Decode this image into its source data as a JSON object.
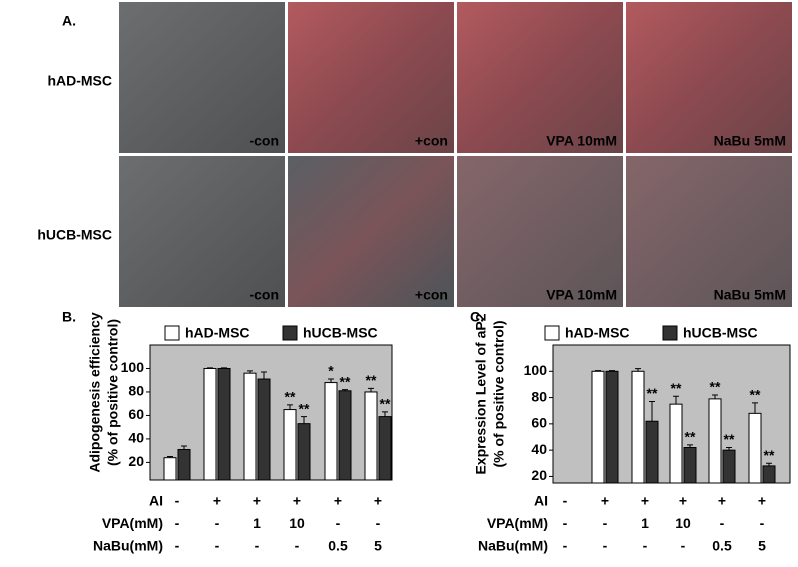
{
  "panel_a": {
    "label": "A.",
    "rows": [
      {
        "label": "hAD-MSC",
        "images": [
          "-con",
          "+con",
          "VPA 10mM",
          "NaBu 5mM"
        ]
      },
      {
        "label": "hUCB-MSC",
        "images": [
          "-con",
          "+con",
          "VPA 10mM",
          "NaBu 5mM"
        ]
      }
    ]
  },
  "chart_data": [
    {
      "type": "bar",
      "panel_label": "B.",
      "y_label": [
        "Adipogenesis efficiency",
        "(% of positive control)"
      ],
      "ylim": [
        5,
        120
      ],
      "yticks": [
        20,
        40,
        60,
        80,
        100
      ],
      "treatment_rows": [
        {
          "label": "AI",
          "values": [
            "-",
            "+",
            "+",
            "+",
            "+",
            "+"
          ]
        },
        {
          "label": "VPA(mM)",
          "values": [
            "-",
            "-",
            "1",
            "10",
            "-",
            "-"
          ]
        },
        {
          "label": "NaBu(mM)",
          "values": [
            "-",
            "-",
            "-",
            "-",
            "0.5",
            "5"
          ]
        }
      ],
      "series": [
        {
          "name": "hAD-MSC",
          "color": "#ffffff",
          "values": [
            24,
            100,
            96,
            65,
            88,
            80
          ],
          "errors": [
            1,
            0.5,
            2,
            4,
            3,
            3
          ],
          "annotations": [
            null,
            null,
            null,
            "**",
            "*",
            "**"
          ]
        },
        {
          "name": "hUCB-MSC",
          "color": "#333333",
          "values": [
            31,
            100,
            91,
            53,
            81,
            59
          ],
          "errors": [
            3,
            0.5,
            6,
            6,
            1,
            4
          ],
          "annotations": [
            null,
            null,
            null,
            "**",
            "**",
            "**"
          ]
        }
      ]
    },
    {
      "type": "bar",
      "panel_label": "C.",
      "y_label": [
        "Expression Level of aP2",
        "(% of positive control)"
      ],
      "ylim": [
        15,
        120
      ],
      "yticks": [
        20,
        40,
        60,
        80,
        100
      ],
      "treatment_rows": [
        {
          "label": "AI",
          "values": [
            "-",
            "+",
            "+",
            "+",
            "+",
            "+"
          ]
        },
        {
          "label": "VPA(mM)",
          "values": [
            "-",
            "-",
            "1",
            "10",
            "-",
            "-"
          ]
        },
        {
          "label": "NaBu(mM)",
          "values": [
            "-",
            "-",
            "-",
            "-",
            "0.5",
            "5"
          ]
        }
      ],
      "series": [
        {
          "name": "hAD-MSC",
          "color": "#ffffff",
          "values": [
            null,
            100,
            100,
            75,
            79,
            68
          ],
          "errors": [
            null,
            0.5,
            2,
            6,
            3,
            8
          ],
          "annotations": [
            null,
            null,
            null,
            "**",
            "**",
            "**"
          ]
        },
        {
          "name": "hUCB-MSC",
          "color": "#333333",
          "values": [
            null,
            100,
            62,
            42,
            40,
            28
          ],
          "errors": [
            null,
            0.5,
            15,
            2,
            2,
            2
          ],
          "annotations": [
            null,
            null,
            "**",
            "**",
            "**",
            "**"
          ]
        }
      ]
    }
  ]
}
